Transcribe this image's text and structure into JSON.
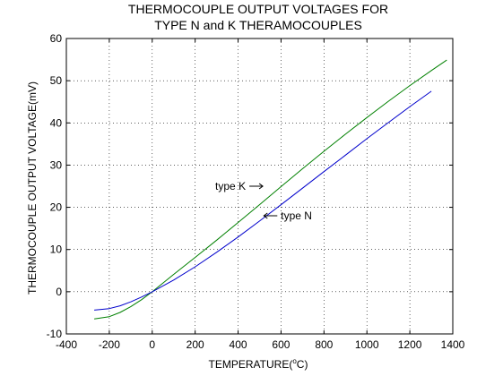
{
  "chart_data": {
    "type": "line",
    "title_line1": "THERMOCOUPLE OUTPUT VOLTAGES FOR",
    "title_line2": "TYPE N and K THERAMOCOUPLES",
    "xlabel_main": "TEMPERATURE(",
    "xlabel_sup": "o",
    "xlabel_tail": "C)",
    "ylabel": "THERMOCOUPLE OUTPUT VOLTAGE(mV)",
    "xlim": [
      -400,
      1400
    ],
    "ylim": [
      -10,
      60
    ],
    "xticks": [
      -400,
      -200,
      0,
      200,
      400,
      600,
      800,
      1000,
      1200,
      1400
    ],
    "yticks": [
      -10,
      0,
      10,
      20,
      30,
      40,
      50,
      60
    ],
    "grid": true,
    "series": [
      {
        "name": "type K",
        "color": "#008000",
        "x": [
          -270,
          -200,
          -150,
          -100,
          -50,
          0,
          100,
          200,
          300,
          400,
          500,
          600,
          700,
          800,
          900,
          1000,
          1100,
          1200,
          1300,
          1372
        ],
        "y": [
          -6.46,
          -5.9,
          -4.9,
          -3.55,
          -1.9,
          0,
          4.1,
          8.14,
          12.21,
          16.4,
          20.64,
          24.9,
          29.13,
          33.28,
          37.33,
          41.27,
          45.12,
          48.84,
          52.41,
          54.89
        ]
      },
      {
        "name": "type N",
        "color": "#0000cc",
        "x": [
          -270,
          -200,
          -150,
          -100,
          -50,
          0,
          100,
          200,
          300,
          400,
          500,
          600,
          700,
          800,
          900,
          1000,
          1100,
          1200,
          1300
        ],
        "y": [
          -4.35,
          -3.99,
          -3.34,
          -2.41,
          -1.27,
          0,
          2.77,
          5.91,
          9.34,
          12.97,
          16.75,
          20.61,
          24.53,
          28.46,
          32.37,
          36.26,
          40.09,
          43.85,
          47.51
        ]
      }
    ],
    "annotations": [
      {
        "text": "type K",
        "x": 515,
        "y": 25,
        "arrow": "right"
      },
      {
        "text": "type N",
        "x": 520,
        "y": 18,
        "arrow": "left"
      }
    ]
  }
}
